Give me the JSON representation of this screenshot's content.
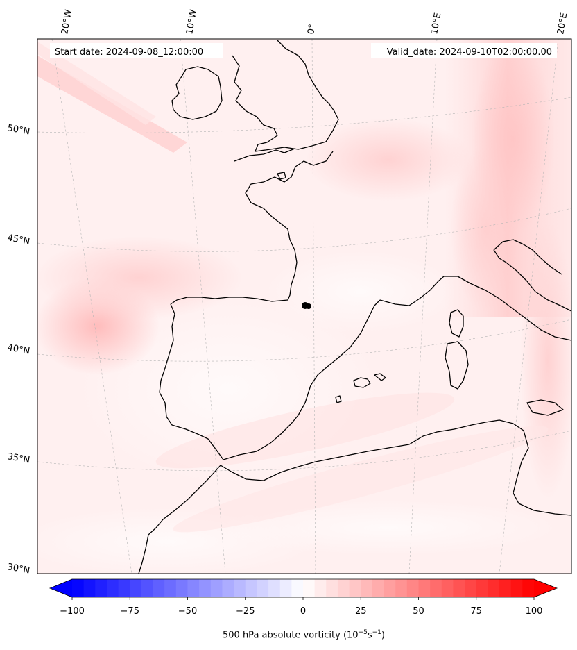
{
  "header": {
    "start_date": "Start date: 2024-09-08_12:00:00",
    "valid_date": "Valid_date: 2024-09-10T02:00:00.00"
  },
  "lon_labels": [
    "20°W",
    "10°W",
    "0°",
    "10°E",
    "20°E"
  ],
  "lat_labels": [
    "50°N",
    "45°N",
    "40°N",
    "35°N",
    "30°N"
  ],
  "colorbar": {
    "ticks": [
      "−100",
      "−75",
      "−50",
      "−25",
      "0",
      "25",
      "50",
      "75",
      "100"
    ],
    "label_text": "500 hPa absolute vorticity (10",
    "label_exp1": "−5",
    "label_mid": "s",
    "label_exp2": "−1",
    "label_end": ")",
    "min": -100,
    "max": 100,
    "low_color": "#0000ff",
    "mid_color": "#ffffff",
    "high_color": "#ff0000"
  },
  "colors": {
    "map_base": "#fff0f0",
    "light_red": "#ffe0e0",
    "medium_red": "#ffc9c9",
    "coastline": "#000000"
  }
}
